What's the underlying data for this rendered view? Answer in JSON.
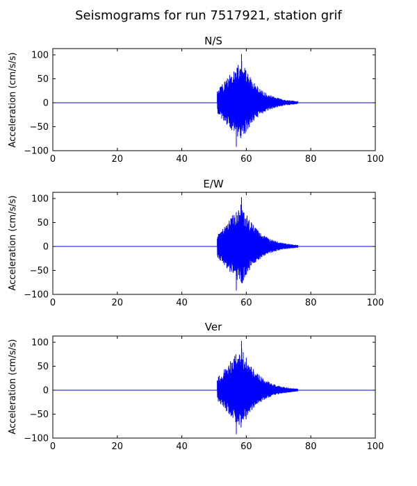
{
  "figure": {
    "suptitle": "Seismograms for run 7517921, station grif"
  },
  "chart_data": [
    {
      "type": "line",
      "title": "N/S",
      "xlabel": "",
      "ylabel": "Acceleration (cm/s/s)",
      "xlim": [
        0,
        100
      ],
      "ylim": [
        -100,
        113
      ],
      "xticks": [
        0,
        20,
        40,
        60,
        80,
        100
      ],
      "yticks": [
        -100,
        -50,
        0,
        50,
        100
      ],
      "grid": false,
      "color": "#0000ff",
      "signal": {
        "quiet_until": 51,
        "onset": 51,
        "peak_time": 58.5,
        "peak_amplitude": 102,
        "min_amplitude": -92,
        "end": 76,
        "baseline": 0
      }
    },
    {
      "type": "line",
      "title": "E/W",
      "xlabel": "",
      "ylabel": "Acceleration (cm/s/s)",
      "xlim": [
        0,
        100
      ],
      "ylim": [
        -100,
        113
      ],
      "xticks": [
        0,
        20,
        40,
        60,
        80,
        100
      ],
      "yticks": [
        -100,
        -50,
        0,
        50,
        100
      ],
      "grid": false,
      "color": "#0000ff",
      "signal": {
        "quiet_until": 51,
        "onset": 51,
        "peak_time": 58.5,
        "peak_amplitude": 103,
        "min_amplitude": -92,
        "end": 76,
        "baseline": 0
      }
    },
    {
      "type": "line",
      "title": "Ver",
      "xlabel": "",
      "ylabel": "Acceleration (cm/s/s)",
      "xlim": [
        0,
        100
      ],
      "ylim": [
        -100,
        113
      ],
      "xticks": [
        0,
        20,
        40,
        60,
        80,
        100
      ],
      "yticks": [
        -100,
        -50,
        0,
        50,
        100
      ],
      "grid": false,
      "color": "#0000ff",
      "signal": {
        "quiet_until": 51,
        "onset": 51,
        "peak_time": 58.5,
        "peak_amplitude": 103,
        "min_amplitude": -92,
        "end": 76,
        "baseline": 0
      }
    }
  ]
}
